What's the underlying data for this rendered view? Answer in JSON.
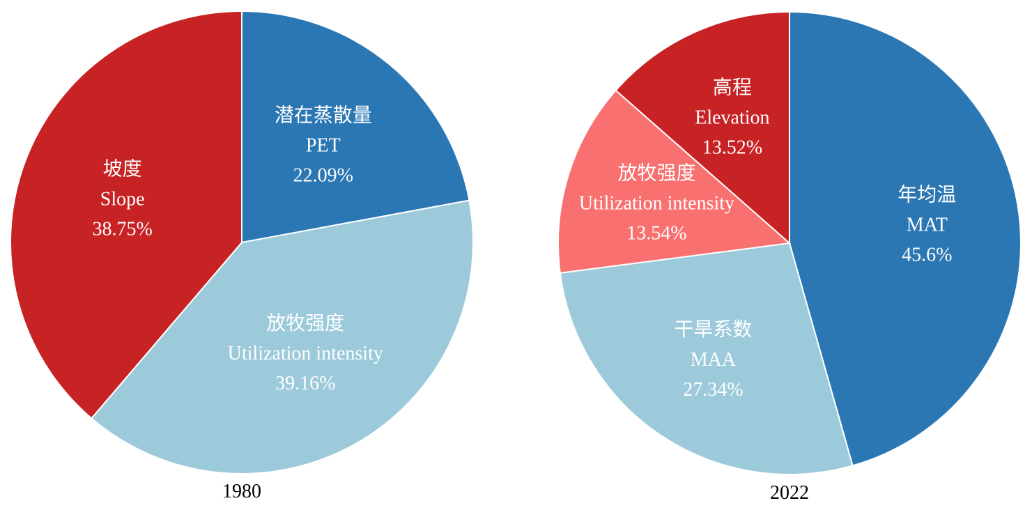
{
  "chart_data": [
    {
      "type": "pie",
      "title": "",
      "xlabel": "1980",
      "start": "top, clockwise",
      "slices": [
        {
          "zh": "潜在蒸散量",
          "en": "PET",
          "value": 22.09,
          "label": "22.09%",
          "color": "#2b77b4"
        },
        {
          "zh": "放牧强度",
          "en": "Utilization intensity",
          "value": 39.16,
          "label": "39.16%",
          "color": "#9ccadb"
        },
        {
          "zh": "坡度",
          "en": "Slope",
          "value": 38.75,
          "label": "38.75%",
          "color": "#c72224"
        }
      ]
    },
    {
      "type": "pie",
      "title": "",
      "xlabel": "2022",
      "start": "top, clockwise",
      "slices": [
        {
          "zh": "年均温",
          "en": "MAT",
          "value": 45.6,
          "label": "45.6%",
          "color": "#2b77b4"
        },
        {
          "zh": "干旱系数",
          "en": "MAA",
          "value": 27.34,
          "label": "27.34%",
          "color": "#9ccadb"
        },
        {
          "zh": "放牧强度",
          "en": "Utilization intensity",
          "value": 13.54,
          "label": "13.54%",
          "color": "#f87070"
        },
        {
          "zh": "高程",
          "en": "Elevation",
          "value": 13.52,
          "label": "13.52%",
          "color": "#c72224"
        }
      ]
    }
  ]
}
